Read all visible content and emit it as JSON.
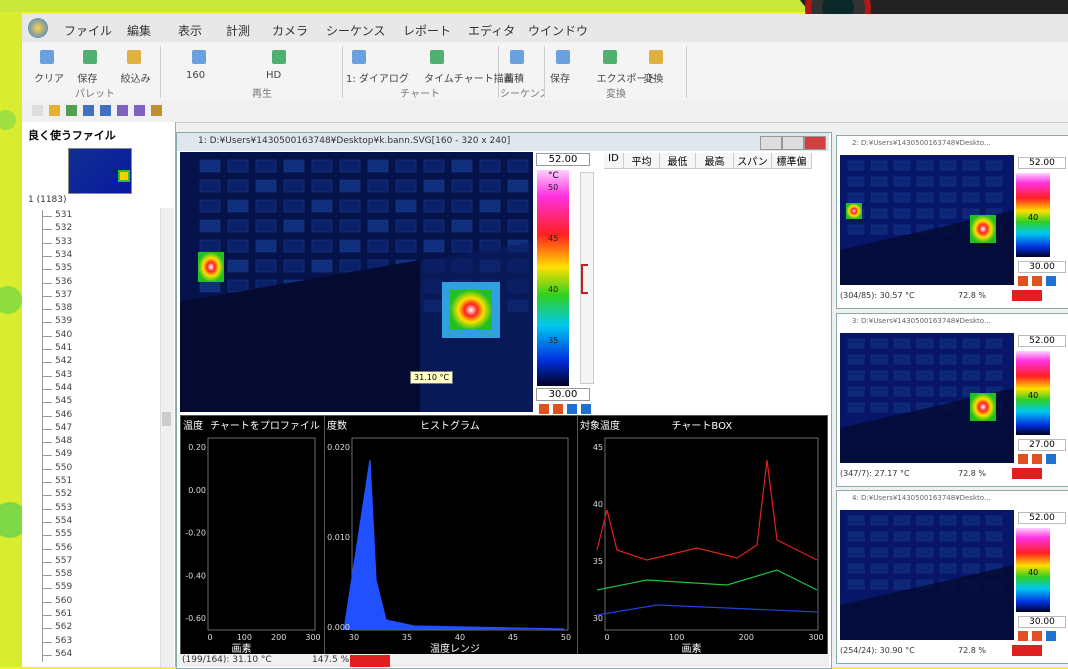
{
  "menu": [
    "ファイル",
    "編集",
    "表示",
    "計測",
    "カメラ",
    "シーケンス",
    "レポート",
    "エディタ",
    "ウインドウ"
  ],
  "ribbon": {
    "groups": [
      {
        "label": "パレット",
        "items": [
          "クリア",
          "保存",
          "絞込み"
        ]
      },
      {
        "label": "再生",
        "items": [
          "160",
          "HD"
        ]
      },
      {
        "label": "チャート",
        "items": [
          "1: ダイアログ",
          "タイムチャート描画"
        ]
      },
      {
        "label": "シーケンス",
        "items": [
          "蓄積"
        ]
      },
      {
        "label": "変換",
        "items": [
          "保存",
          "エクスポート",
          "変換"
        ]
      }
    ]
  },
  "sidebar": {
    "title": "良く使うファイル",
    "root": "1 (1183)",
    "files": [
      "531",
      "532",
      "533",
      "534",
      "535",
      "536",
      "537",
      "538",
      "539",
      "540",
      "541",
      "542",
      "543",
      "544",
      "545",
      "546",
      "547",
      "548",
      "549",
      "550",
      "551",
      "552",
      "553",
      "554",
      "555",
      "556",
      "557",
      "558",
      "559",
      "560",
      "561",
      "562",
      "563",
      "564"
    ]
  },
  "main_window": {
    "title": "1: D:¥Users¥1430500163748¥Desktop¥k.bann.SVG[160 - 320 x 240]",
    "scale": {
      "max": "52.00",
      "min": "30.00",
      "unit": "°C",
      "labels": [
        "50",
        "45",
        "40",
        "35"
      ]
    },
    "tooltip": "31.10 °C",
    "table_headers": [
      "ID",
      "平均",
      "最低",
      "最高",
      "スパン",
      "標準偏"
    ],
    "charts": [
      {
        "ylabel": "温度",
        "title": "チャートをプロファイル",
        "xlabel": "画素",
        "yticks": [
          "0.20",
          "0.00",
          "-0.20",
          "-0.40",
          "-0.60"
        ],
        "xticks": [
          "0",
          "100",
          "200",
          "300"
        ]
      },
      {
        "ylabel": "度数",
        "title": "ヒストグラム",
        "xlabel": "温度レンジ",
        "yticks": [
          "0.020",
          "0.010",
          "0.000"
        ],
        "xticks": [
          "30",
          "35",
          "40",
          "45",
          "50"
        ]
      },
      {
        "ylabel": "対象温度",
        "title": "チャートBOX",
        "xlabel": "画素",
        "yticks": [
          "45",
          "40",
          "35",
          "30"
        ],
        "xticks": [
          "0",
          "100",
          "200",
          "300"
        ]
      }
    ],
    "status": {
      "position": "(199/164): 31.10 °C",
      "zoom": "147.5 %"
    }
  },
  "side_windows": [
    {
      "title": "2: D:¥Users¥1430500163748¥Deskto...",
      "scale_max": "52.00",
      "scale_mid": "40",
      "scale_min": "30.00",
      "status": "(304/85): 30.57 °C",
      "zoom": "72.8 %"
    },
    {
      "title": "3: D:¥Users¥1430500163748¥Deskto...",
      "scale_max": "52.00",
      "scale_mid": "40",
      "scale_min": "27.00",
      "status": "(347/7): 27.17 °C",
      "zoom": "72.8 %"
    },
    {
      "title": "4: D:¥Users¥1430500163748¥Deskto...",
      "scale_max": "52.00",
      "scale_mid": "40",
      "scale_min": "30.00",
      "status": "(254/24): 30.90 °C",
      "zoom": "72.8 %"
    }
  ]
}
